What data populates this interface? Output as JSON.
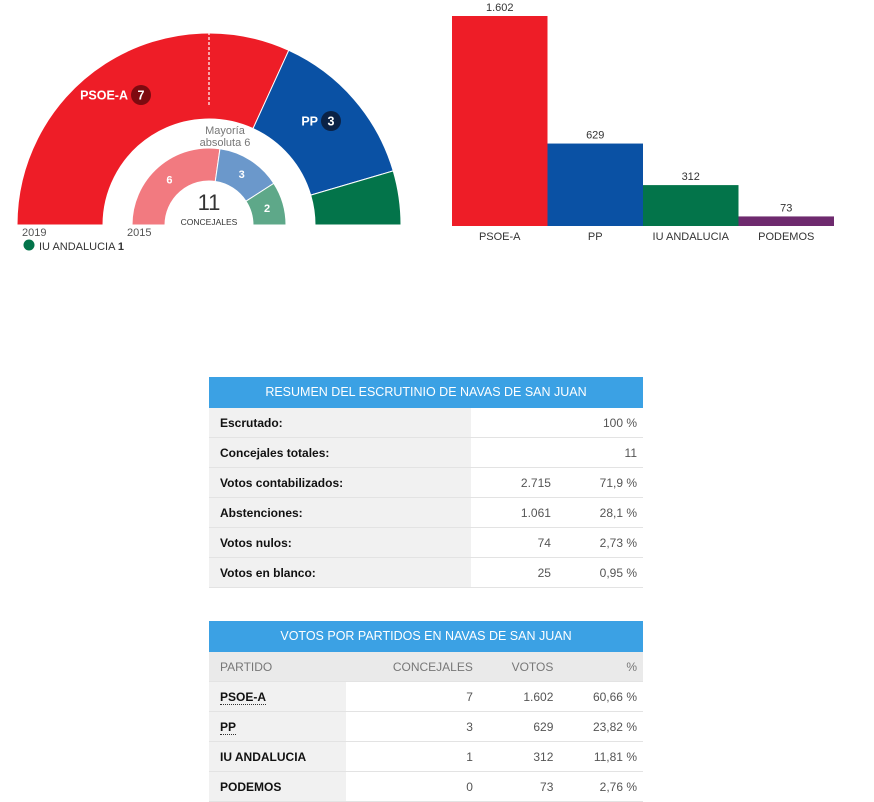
{
  "hemicycle": {
    "outer_year": "2019",
    "inner_year": "2015",
    "majority_line1": "Mayoría",
    "majority_line2": "absoluta 6",
    "total_seats": "11",
    "total_label": "CONCEJALES",
    "outer": [
      {
        "party": "PSOE-A",
        "seats": 7,
        "color": "#ee1d27",
        "badge_color": "#7d0a10"
      },
      {
        "party": "PP",
        "seats": 3,
        "color": "#0a51a4",
        "badge_color": "#0b2246"
      },
      {
        "party": "IU ANDALUCIA",
        "seats": 1,
        "color": "#03744a",
        "badge_color": "#024d31"
      }
    ],
    "inner": [
      {
        "seats": 6,
        "color": "#f27a80"
      },
      {
        "seats": 3,
        "color": "#6b98cb"
      },
      {
        "seats": 2,
        "color": "#5ea889"
      }
    ],
    "legend": {
      "label": "IU ANDALUCIA",
      "value": "1",
      "color": "#03744a"
    }
  },
  "chart_data": {
    "type": "bar",
    "title": "",
    "categories": [
      "PSOE-A",
      "PP",
      "IU ANDALUCIA",
      "PODEMOS"
    ],
    "values": [
      1602,
      629,
      312,
      73
    ],
    "value_labels": [
      "1.602",
      "629",
      "312",
      "73"
    ],
    "colors": [
      "#ee1d27",
      "#0a51a4",
      "#03744a",
      "#6e2a6e"
    ],
    "xlabel": "",
    "ylabel": "",
    "ylim": [
      0,
      1602
    ]
  },
  "summary": {
    "title": "RESUMEN DEL ESCRUTINIO DE NAVAS DE SAN JUAN",
    "rows": [
      {
        "label": "Escrutado:",
        "v1": "",
        "v2": "100 %"
      },
      {
        "label": "Concejales totales:",
        "v1": "",
        "v2": "11"
      },
      {
        "label": "Votos contabilizados:",
        "v1": "2.715",
        "v2": "71,9 %"
      },
      {
        "label": "Abstenciones:",
        "v1": "1.061",
        "v2": "28,1 %"
      },
      {
        "label": "Votos nulos:",
        "v1": "74",
        "v2": "2,73 %"
      },
      {
        "label": "Votos en blanco:",
        "v1": "25",
        "v2": "0,95 %"
      }
    ]
  },
  "parties": {
    "title": "VOTOS POR PARTIDOS EN NAVAS DE SAN JUAN",
    "headers": [
      "PARTIDO",
      "CONCEJALES",
      "VOTOS",
      "%"
    ],
    "rows": [
      {
        "party": "PSOE-A",
        "seats": "7",
        "votes": "1.602",
        "pct": "60,66 %",
        "link": true
      },
      {
        "party": "PP",
        "seats": "3",
        "votes": "629",
        "pct": "23,82 %",
        "link": true
      },
      {
        "party": "IU ANDALUCIA",
        "seats": "1",
        "votes": "312",
        "pct": "11,81 %",
        "link": false
      },
      {
        "party": "PODEMOS",
        "seats": "0",
        "votes": "73",
        "pct": "2,76 %",
        "link": false
      }
    ]
  }
}
